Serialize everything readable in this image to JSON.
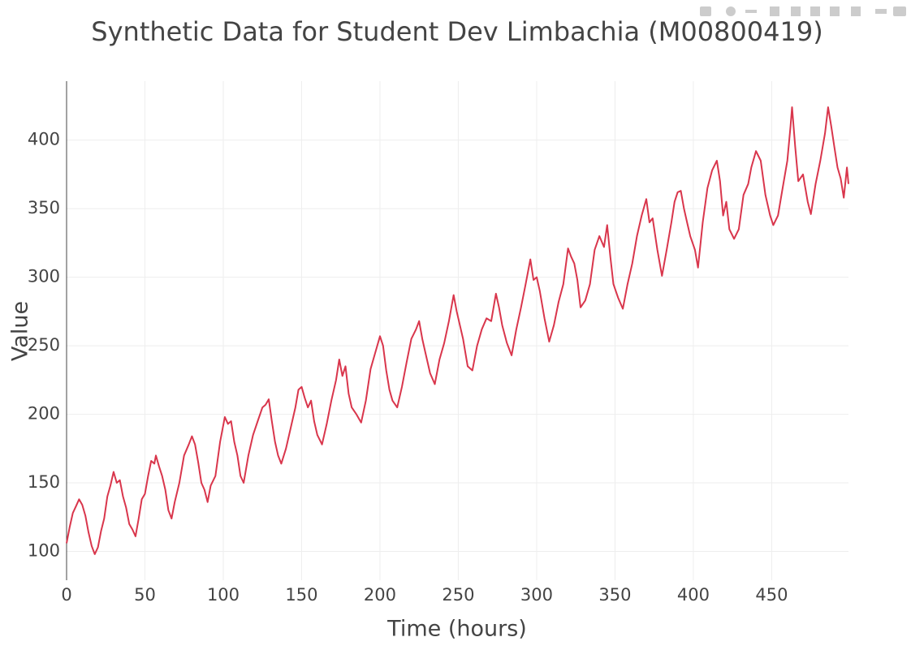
{
  "chart_data": {
    "type": "line",
    "title": "Synthetic Data for Student Dev Limbachia (M00800419)",
    "x_label": "Time (hours)",
    "y_label": "Value",
    "xlim": [
      0,
      499
    ],
    "ylim": [
      79,
      443
    ],
    "xticks": [
      0,
      50,
      100,
      150,
      200,
      250,
      300,
      350,
      400,
      450
    ],
    "yticks": [
      100,
      150,
      200,
      250,
      300,
      350,
      400
    ],
    "grid": true,
    "x": [
      0,
      2,
      4,
      6,
      8,
      10,
      12,
      14,
      16,
      18,
      20,
      22,
      24,
      26,
      28,
      30,
      32,
      34,
      36,
      38,
      40,
      42,
      44,
      46,
      48,
      50,
      52,
      54,
      56,
      57,
      59,
      61,
      63,
      65,
      67,
      69,
      72,
      75,
      78,
      80,
      82,
      84,
      86,
      88,
      90,
      92,
      95,
      98,
      101,
      103,
      105,
      107,
      109,
      111,
      113,
      116,
      119,
      122,
      125,
      127,
      129,
      131,
      133,
      135,
      137,
      140,
      143,
      146,
      148,
      150,
      152,
      154,
      156,
      158,
      160,
      163,
      166,
      169,
      172,
      174,
      176,
      178,
      180,
      182,
      185,
      188,
      191,
      194,
      197,
      200,
      202,
      204,
      206,
      208,
      211,
      214,
      217,
      220,
      223,
      225,
      227,
      229,
      232,
      235,
      238,
      241,
      244,
      247,
      249,
      251,
      253,
      256,
      259,
      262,
      265,
      268,
      271,
      274,
      276,
      278,
      281,
      284,
      287,
      290,
      293,
      296,
      298,
      300,
      302,
      305,
      308,
      311,
      314,
      317,
      320,
      322,
      324,
      326,
      328,
      331,
      334,
      337,
      340,
      343,
      345,
      347,
      349,
      352,
      355,
      358,
      361,
      364,
      367,
      370,
      372,
      374,
      377,
      380,
      383,
      386,
      388,
      390,
      392,
      394,
      396,
      398,
      401,
      403,
      406,
      409,
      412,
      415,
      417,
      419,
      421,
      423,
      426,
      429,
      432,
      435,
      437,
      440,
      443,
      446,
      449,
      451,
      454,
      457,
      460,
      462,
      463,
      465,
      467,
      470,
      473,
      475,
      478,
      481,
      484,
      486,
      488,
      490,
      492,
      494,
      496,
      498,
      499
    ],
    "series": [
      {
        "name": "Value",
        "color": "#d9364c",
        "values": [
          106,
          118,
          128,
          133,
          138,
          134,
          126,
          114,
          104,
          98,
          103,
          115,
          124,
          140,
          148,
          158,
          150,
          152,
          140,
          132,
          120,
          116,
          111,
          124,
          138,
          142,
          155,
          166,
          164,
          170,
          162,
          155,
          145,
          130,
          124,
          136,
          150,
          170,
          178,
          184,
          178,
          165,
          150,
          145,
          136,
          148,
          155,
          180,
          198,
          193,
          195,
          180,
          170,
          155,
          150,
          170,
          185,
          195,
          205,
          207,
          211,
          195,
          180,
          170,
          164,
          175,
          190,
          205,
          218,
          220,
          212,
          205,
          210,
          195,
          185,
          178,
          193,
          210,
          225,
          240,
          228,
          235,
          215,
          205,
          200,
          194,
          210,
          233,
          245,
          257,
          250,
          232,
          218,
          210,
          205,
          220,
          238,
          255,
          262,
          268,
          255,
          245,
          230,
          222,
          240,
          252,
          268,
          287,
          275,
          265,
          255,
          235,
          232,
          250,
          262,
          270,
          268,
          288,
          278,
          265,
          252,
          243,
          262,
          278,
          295,
          313,
          298,
          300,
          290,
          270,
          253,
          265,
          282,
          295,
          321,
          315,
          310,
          298,
          278,
          283,
          295,
          320,
          330,
          322,
          338,
          315,
          295,
          285,
          277,
          295,
          310,
          330,
          345,
          357,
          340,
          343,
          320,
          301,
          320,
          340,
          355,
          362,
          363,
          350,
          340,
          330,
          320,
          307,
          340,
          365,
          378,
          385,
          370,
          345,
          355,
          335,
          328,
          335,
          360,
          368,
          380,
          392,
          385,
          360,
          345,
          338,
          345,
          365,
          385,
          410,
          424,
          395,
          370,
          375,
          355,
          346,
          368,
          385,
          405,
          424,
          410,
          395,
          380,
          372,
          358,
          380,
          368
        ]
      }
    ]
  }
}
